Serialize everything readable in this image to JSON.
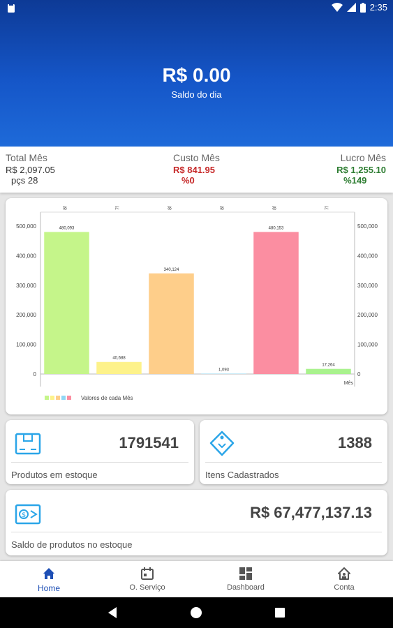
{
  "status_bar": {
    "time": "2:35"
  },
  "header": {
    "balance": "R$ 0.00",
    "balance_label": "Saldo do dia"
  },
  "summary": {
    "total": {
      "label": "Total Mês",
      "value": "R$ 2,097.05",
      "sub": "pçs 28"
    },
    "custo": {
      "label": "Custo Mês",
      "value": "R$ 841.95",
      "sub": "%0"
    },
    "lucro": {
      "label": "Lucro Mês",
      "value": "R$ 1,255.10",
      "sub": "%149"
    }
  },
  "chart_data": {
    "type": "bar",
    "categories": [
      "8/",
      "7/",
      "8/",
      "8/",
      "8/",
      "7/"
    ],
    "values": [
      480093,
      40688,
      340124,
      1093,
      480153,
      17264
    ],
    "value_labels": [
      "480,093",
      "40,688",
      "340,124",
      "1,093",
      "480,153",
      "17,264"
    ],
    "colors": [
      "#c5f58a",
      "#fdf28a",
      "#fece8a",
      "#90d6f4",
      "#fb8ea1",
      "#a9f28d"
    ],
    "ylim": [
      0,
      500000
    ],
    "y_ticks": [
      0,
      100000,
      200000,
      300000,
      400000,
      500000
    ],
    "y_tick_labels": [
      "0",
      "100,000",
      "200,000",
      "300,000",
      "400,000",
      "500,000"
    ],
    "xlabel": "Mês",
    "legend": {
      "label": "Valores de cada Mês",
      "swatches": [
        "#c5f58a",
        "#fdf28a",
        "#fece8a",
        "#90d6f4",
        "#fb8ea1"
      ]
    }
  },
  "cards": {
    "produtos": {
      "value": "1791541",
      "label": "Produtos em estoque"
    },
    "itens": {
      "value": "1388",
      "label": "Itens Cadastrados"
    },
    "saldo": {
      "value": "R$ 67,477,137.13",
      "label": "Saldo de produtos no estoque"
    }
  },
  "bottom_nav": {
    "home": "Home",
    "servico": "O. Serviço",
    "dashboard": "Dashboard",
    "conta": "Conta"
  },
  "colors": {
    "primary": "#1e4fb5",
    "header_top": "#0d3a96",
    "header_bottom": "#1e6ad9"
  }
}
